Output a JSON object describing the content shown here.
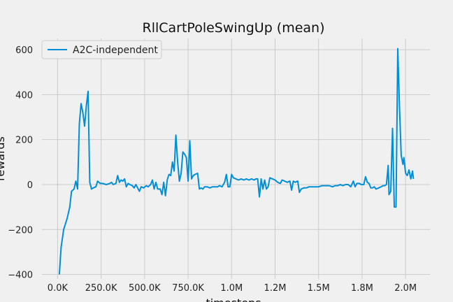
{
  "chart_data": {
    "type": "line",
    "title": "RllCartPoleSwingUp (mean)",
    "xlabel": "timesteps",
    "ylabel": "rewards",
    "xlim": [
      -90000,
      2140000
    ],
    "ylim": [
      -420,
      650
    ],
    "xticks": [
      0,
      250000,
      500000,
      750000,
      1000000,
      1250000,
      1500000,
      1750000,
      2000000
    ],
    "xtick_labels": [
      "0.0K",
      "250.0K",
      "500.0K",
      "750.0K",
      "1.0M",
      "1.2M",
      "1.5M",
      "1.8M",
      "2.0M"
    ],
    "yticks": [
      -400,
      -200,
      0,
      200,
      400,
      600
    ],
    "ytick_labels": [
      "−400",
      "−200",
      "0",
      "200",
      "400",
      "600"
    ],
    "grid": true,
    "legend_position": "top-left",
    "colors": {
      "line": "#008fd5",
      "background": "#f0f0f0",
      "grid": "#cbcbcb"
    },
    "series": [
      {
        "name": "A2C-independent",
        "color": "#008fd5",
        "points": [
          [
            10000,
            -400
          ],
          [
            20000,
            -280
          ],
          [
            35000,
            -200
          ],
          [
            55000,
            -150
          ],
          [
            70000,
            -100
          ],
          [
            80000,
            -30
          ],
          [
            95000,
            -20
          ],
          [
            105000,
            15
          ],
          [
            115000,
            -20
          ],
          [
            125000,
            270
          ],
          [
            135000,
            360
          ],
          [
            145000,
            320
          ],
          [
            155000,
            260
          ],
          [
            165000,
            350
          ],
          [
            175000,
            415
          ],
          [
            185000,
            10
          ],
          [
            195000,
            -20
          ],
          [
            205000,
            -15
          ],
          [
            220000,
            -10
          ],
          [
            230000,
            15
          ],
          [
            245000,
            5
          ],
          [
            260000,
            5
          ],
          [
            280000,
            0
          ],
          [
            300000,
            5
          ],
          [
            310000,
            10
          ],
          [
            320000,
            0
          ],
          [
            335000,
            5
          ],
          [
            345000,
            40
          ],
          [
            355000,
            10
          ],
          [
            365000,
            20
          ],
          [
            375000,
            15
          ],
          [
            385000,
            25
          ],
          [
            395000,
            -10
          ],
          [
            405000,
            5
          ],
          [
            415000,
            0
          ],
          [
            430000,
            -5
          ],
          [
            440000,
            -15
          ],
          [
            450000,
            0
          ],
          [
            460000,
            -15
          ],
          [
            470000,
            -30
          ],
          [
            480000,
            -10
          ],
          [
            495000,
            -15
          ],
          [
            510000,
            -5
          ],
          [
            520000,
            -10
          ],
          [
            535000,
            0
          ],
          [
            545000,
            20
          ],
          [
            555000,
            -20
          ],
          [
            565000,
            10
          ],
          [
            575000,
            -20
          ],
          [
            590000,
            -20
          ],
          [
            600000,
            -45
          ],
          [
            610000,
            10
          ],
          [
            620000,
            -50
          ],
          [
            630000,
            20
          ],
          [
            640000,
            45
          ],
          [
            650000,
            40
          ],
          [
            660000,
            100
          ],
          [
            670000,
            60
          ],
          [
            680000,
            220
          ],
          [
            690000,
            100
          ],
          [
            700000,
            15
          ],
          [
            710000,
            50
          ],
          [
            720000,
            145
          ],
          [
            730000,
            135
          ],
          [
            740000,
            120
          ],
          [
            750000,
            15
          ],
          [
            760000,
            195
          ],
          [
            770000,
            25
          ],
          [
            780000,
            40
          ],
          [
            790000,
            45
          ],
          [
            805000,
            50
          ],
          [
            815000,
            -20
          ],
          [
            825000,
            -15
          ],
          [
            835000,
            -20
          ],
          [
            845000,
            -10
          ],
          [
            860000,
            -10
          ],
          [
            875000,
            -15
          ],
          [
            890000,
            -10
          ],
          [
            905000,
            -10
          ],
          [
            920000,
            -10
          ],
          [
            930000,
            -5
          ],
          [
            945000,
            -10
          ],
          [
            960000,
            10
          ],
          [
            970000,
            45
          ],
          [
            980000,
            -10
          ],
          [
            990000,
            -10
          ],
          [
            1000000,
            45
          ],
          [
            1010000,
            30
          ],
          [
            1025000,
            25
          ],
          [
            1040000,
            20
          ],
          [
            1055000,
            25
          ],
          [
            1070000,
            20
          ],
          [
            1085000,
            25
          ],
          [
            1100000,
            20
          ],
          [
            1115000,
            25
          ],
          [
            1130000,
            20
          ],
          [
            1140000,
            25
          ],
          [
            1150000,
            25
          ],
          [
            1160000,
            -55
          ],
          [
            1170000,
            25
          ],
          [
            1180000,
            -20
          ],
          [
            1190000,
            20
          ],
          [
            1200000,
            -20
          ],
          [
            1210000,
            -10
          ],
          [
            1220000,
            30
          ],
          [
            1235000,
            25
          ],
          [
            1250000,
            20
          ],
          [
            1265000,
            10
          ],
          [
            1280000,
            5
          ],
          [
            1290000,
            20
          ],
          [
            1305000,
            15
          ],
          [
            1320000,
            10
          ],
          [
            1335000,
            15
          ],
          [
            1345000,
            -25
          ],
          [
            1355000,
            15
          ],
          [
            1365000,
            10
          ],
          [
            1380000,
            15
          ],
          [
            1390000,
            -35
          ],
          [
            1400000,
            -20
          ],
          [
            1415000,
            -15
          ],
          [
            1430000,
            -15
          ],
          [
            1445000,
            -10
          ],
          [
            1460000,
            -10
          ],
          [
            1480000,
            -10
          ],
          [
            1500000,
            -10
          ],
          [
            1520000,
            -5
          ],
          [
            1540000,
            -5
          ],
          [
            1560000,
            -5
          ],
          [
            1580000,
            -10
          ],
          [
            1595000,
            -5
          ],
          [
            1610000,
            -5
          ],
          [
            1625000,
            0
          ],
          [
            1640000,
            -5
          ],
          [
            1655000,
            0
          ],
          [
            1670000,
            0
          ],
          [
            1685000,
            -10
          ],
          [
            1700000,
            15
          ],
          [
            1710000,
            -10
          ],
          [
            1720000,
            5
          ],
          [
            1735000,
            5
          ],
          [
            1745000,
            0
          ],
          [
            1760000,
            0
          ],
          [
            1770000,
            35
          ],
          [
            1780000,
            10
          ],
          [
            1790000,
            5
          ],
          [
            1800000,
            -15
          ],
          [
            1810000,
            -15
          ],
          [
            1820000,
            -10
          ],
          [
            1830000,
            -20
          ],
          [
            1845000,
            -15
          ],
          [
            1860000,
            -10
          ],
          [
            1870000,
            -5
          ],
          [
            1880000,
            -5
          ],
          [
            1890000,
            0
          ],
          [
            1900000,
            85
          ],
          [
            1905000,
            -45
          ],
          [
            1915000,
            -30
          ],
          [
            1925000,
            250
          ],
          [
            1935000,
            -100
          ],
          [
            1945000,
            -100
          ],
          [
            1955000,
            605
          ],
          [
            1965000,
            350
          ],
          [
            1975000,
            130
          ],
          [
            1985000,
            90
          ],
          [
            1990000,
            120
          ],
          [
            2000000,
            50
          ],
          [
            2010000,
            40
          ],
          [
            2020000,
            65
          ],
          [
            2030000,
            25
          ],
          [
            2040000,
            60
          ],
          [
            2045000,
            25
          ]
        ]
      }
    ]
  }
}
